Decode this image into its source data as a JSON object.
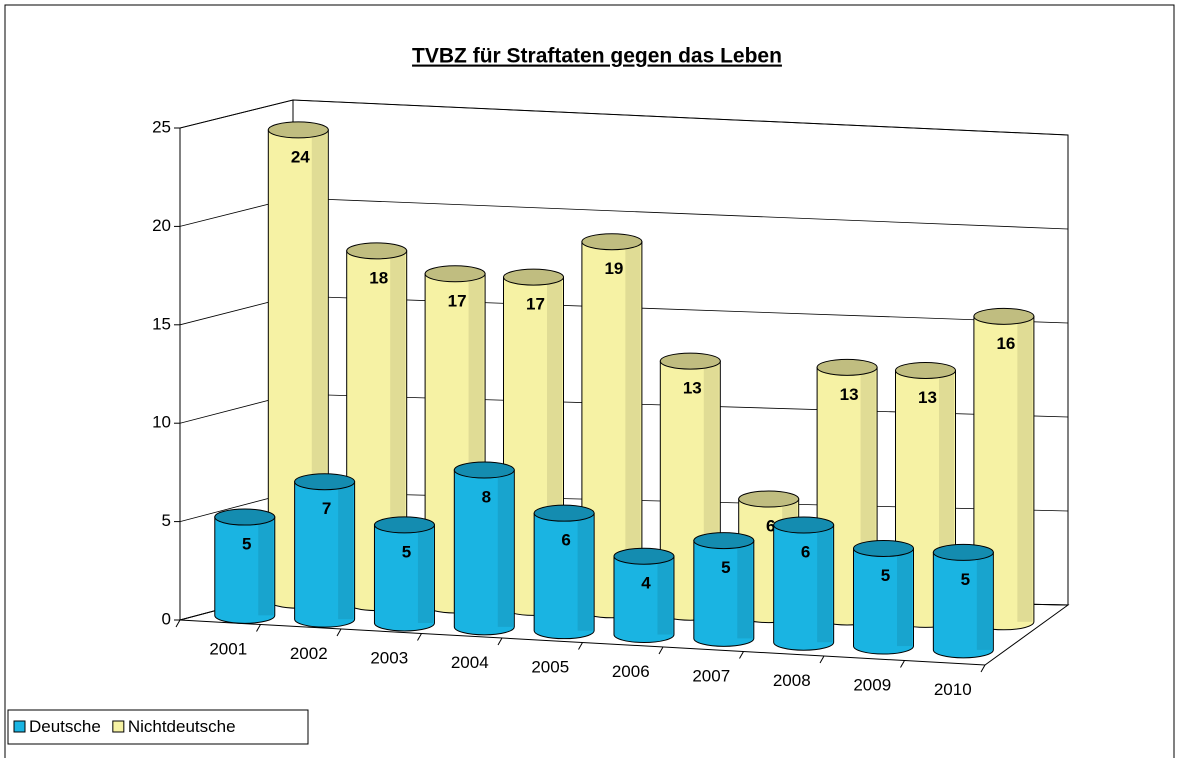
{
  "chart_data": {
    "type": "bar3d",
    "title": "TVBZ für Straftaten gegen das Leben",
    "categories": [
      "2001",
      "2002",
      "2003",
      "2004",
      "2005",
      "2006",
      "2007",
      "2008",
      "2009",
      "2010"
    ],
    "series": [
      {
        "name": "Deutsche",
        "color": "#1ab4e2",
        "values": [
          5,
          7,
          5,
          8,
          6,
          4,
          5,
          6,
          5,
          5
        ]
      },
      {
        "name": "Nichtdeutsche",
        "color": "#f6f2a4",
        "values": [
          24,
          18,
          17,
          17,
          19,
          13,
          6,
          13,
          13,
          16
        ]
      }
    ],
    "ylim": [
      0,
      25
    ],
    "yticks": [
      0,
      5,
      10,
      15,
      20,
      25
    ],
    "grid": true,
    "legend": "bottom-left"
  }
}
